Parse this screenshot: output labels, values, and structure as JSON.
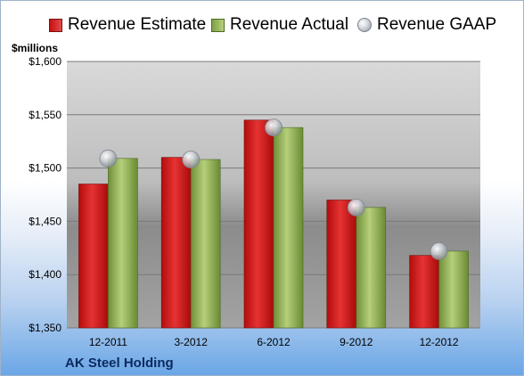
{
  "legend": {
    "estimate": "Revenue Estimate",
    "actual": "Revenue Actual",
    "gaap": "Revenue GAAP"
  },
  "unit_label": "$millions",
  "company": "AK Steel Holding",
  "colors": {
    "estimate": "#d91c1c",
    "actual": "#9bbb59",
    "gaap": "#c0c4ca"
  },
  "chart_data": {
    "type": "bar",
    "categories": [
      "12-2011",
      "3-2012",
      "6-2012",
      "9-2012",
      "12-2012"
    ],
    "series": [
      {
        "name": "Revenue Estimate",
        "values": [
          1485,
          1510,
          1545,
          1470,
          1418
        ]
      },
      {
        "name": "Revenue Actual",
        "values": [
          1509,
          1508,
          1538,
          1463,
          1422
        ]
      },
      {
        "name": "Revenue GAAP",
        "values": [
          1509,
          1508,
          1538,
          1463,
          1422
        ]
      }
    ],
    "ylabel": "$millions",
    "ylim": [
      1350,
      1600
    ],
    "yticks": [
      "$1,350",
      "$1,400",
      "$1,450",
      "$1,500",
      "$1,550",
      "$1,600"
    ],
    "grid": true,
    "legend_position": "top"
  }
}
